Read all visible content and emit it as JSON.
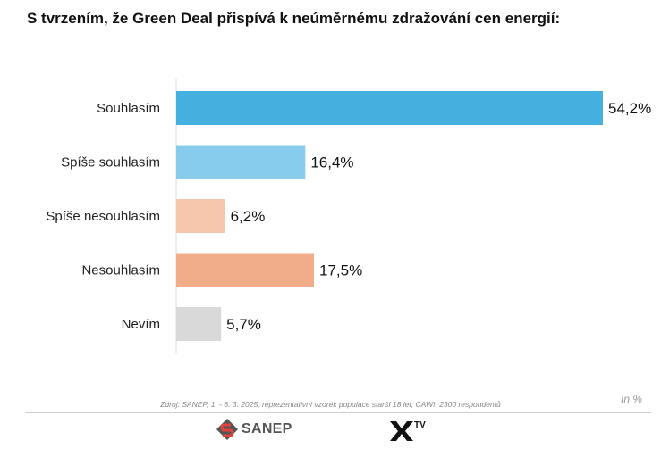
{
  "title": "S tvrzením, že Green Deal přispívá k neúměrnému zdražování cen energií:",
  "source": "Zdroj: SANEP, 1. - 8. 3. 2025, reprezentativní vzorek populace starší 18 let, CAWI, 2300 respondentů",
  "unit_note": "In %",
  "logos": {
    "sanep": "SANEP",
    "xtv": "TV"
  },
  "chart_data": {
    "type": "bar",
    "orientation": "horizontal",
    "title": "S tvrzením, že Green Deal přispívá k neúměrnému zdražování cen energií:",
    "categories": [
      "Souhlasím",
      "Spíše souhlasím",
      "Spíše nesouhlasím",
      "Nesouhlasím",
      "Nevím"
    ],
    "values": [
      54.2,
      16.4,
      6.2,
      17.5,
      5.7
    ],
    "value_labels": [
      "54,2%",
      "16,4%",
      "6,2%",
      "17,5%",
      "5,7%"
    ],
    "colors": [
      "#45afe0",
      "#87ccec",
      "#f6c6ad",
      "#f1ac89",
      "#d9d9d9"
    ],
    "xlim": [
      0,
      54.2
    ],
    "grid": false,
    "legend": "none"
  }
}
